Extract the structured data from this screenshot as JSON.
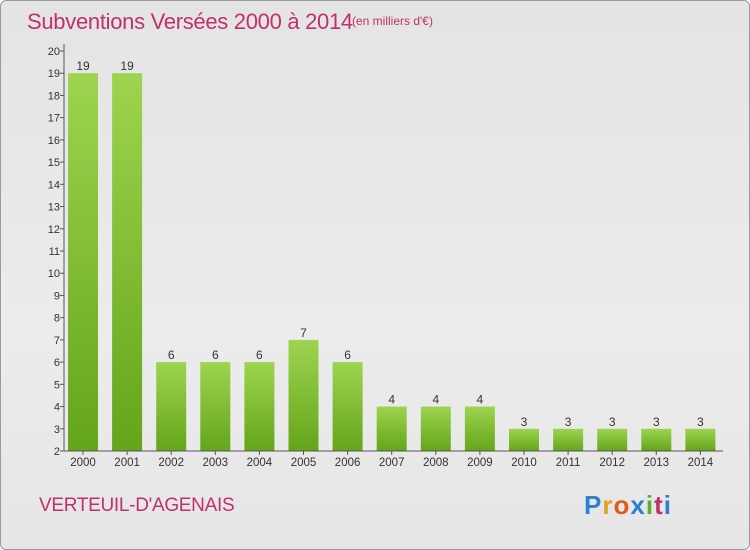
{
  "title": "Subventions Versées 2000 à 2014",
  "subtitle": "(en milliers d'€)",
  "commune": "VERTEUIL-D'AGENAIS",
  "logo": {
    "letters": [
      "P",
      "r",
      "o",
      "x",
      "i",
      "t",
      "i"
    ],
    "colors": [
      "#2d7fd0",
      "#e0a020",
      "#e05a20",
      "#2d7fd0",
      "#58b030",
      "#c0306a",
      "#2d7fd0"
    ]
  },
  "colors": {
    "accent": "#c0306a",
    "bar_light": "#9ed44f",
    "bar_dark": "#63a51b"
  },
  "chart_data": {
    "type": "bar",
    "categories": [
      "2000",
      "2001",
      "2002",
      "2003",
      "2004",
      "2005",
      "2006",
      "2007",
      "2008",
      "2009",
      "2010",
      "2011",
      "2012",
      "2013",
      "2014"
    ],
    "values": [
      19,
      19,
      6,
      6,
      6,
      7,
      6,
      4,
      4,
      4,
      3,
      3,
      3,
      3,
      3
    ],
    "data_labels": [
      "19",
      "19",
      "6",
      "6",
      "6",
      "7",
      "6",
      "4",
      "4",
      "4",
      "3",
      "3",
      "3",
      "3",
      "3"
    ],
    "ylim": [
      2,
      20
    ],
    "yticks": [
      "2",
      "3",
      "4",
      "5",
      "6",
      "7",
      "8",
      "9",
      "10",
      "11",
      "12",
      "13",
      "14",
      "15",
      "16",
      "17",
      "18",
      "19",
      "20"
    ],
    "grid": false,
    "title": "Subventions Versées 2000 à 2014",
    "xlabel": "",
    "ylabel": ""
  }
}
